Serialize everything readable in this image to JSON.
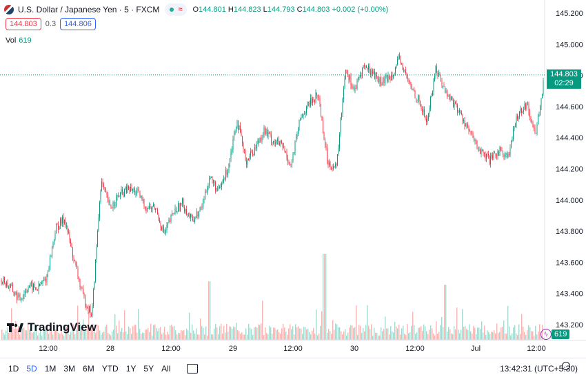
{
  "header": {
    "symbol_title": "U.S. Dollar / Japanese Yen · 5 · FXCM",
    "ohlc": {
      "o_label": "O",
      "o": "144.801",
      "h_label": "H",
      "h": "144.823",
      "l_label": "L",
      "l": "144.793",
      "c_label": "C",
      "c": "144.803",
      "change": "+0.002 (+0.00%)"
    },
    "sell_price": "144.803",
    "spread": "0.3",
    "buy_price": "144.806",
    "volume_label": "Vol",
    "volume_value": "619",
    "brand": "TradingView",
    "icons": [
      "flag-icon",
      "market-open-dot-icon",
      "wave-icon"
    ]
  },
  "last_price_label": {
    "price": "144.803",
    "countdown": "02:29"
  },
  "volume_badge": "619",
  "bottom": {
    "ranges": [
      "1D",
      "5D",
      "1M",
      "3M",
      "6M",
      "YTD",
      "1Y",
      "5Y",
      "All"
    ],
    "active_range": "5D",
    "clock": "13:42:31 (UTC+5:30)"
  },
  "colors": {
    "up": "#089981",
    "down": "#f23645",
    "vol_up": "#a6d8cf",
    "vol_down": "#f7b5b3",
    "accent": "#2962ff"
  },
  "chart_data": {
    "type": "line",
    "title": "U.S. Dollar / Japanese Yen · 5 · FXCM",
    "xlabel": "",
    "ylabel": "",
    "ylim": [
      143.1,
      145.2
    ],
    "y_ticks": [
      "145.200",
      "145.000",
      "144.800",
      "144.600",
      "144.400",
      "144.200",
      "144.000",
      "143.800",
      "143.600",
      "143.400",
      "143.200"
    ],
    "x_ticks": [
      "12:00",
      "28",
      "12:00",
      "29",
      "12:00",
      "30",
      "12:00",
      "Jul",
      "12:00"
    ],
    "last_price": 144.803,
    "series": [
      {
        "x": [
          0,
          3,
          6,
          9,
          12,
          15,
          18,
          21,
          24,
          27,
          30,
          33,
          36,
          39,
          42,
          45,
          48,
          51,
          54,
          57,
          60,
          63,
          66,
          69,
          72,
          75,
          78,
          81,
          84,
          87,
          90,
          93,
          96,
          99,
          102,
          105,
          108,
          111,
          114,
          117,
          120,
          123,
          126,
          129,
          132,
          135,
          138,
          141,
          144,
          147,
          150,
          153,
          156,
          159
        ],
        "values": [
          143.49,
          143.44,
          143.36,
          143.45,
          143.43,
          143.5,
          143.82,
          143.88,
          143.62,
          143.38,
          143.26,
          144.12,
          143.95,
          144.03,
          144.07,
          144.05,
          143.95,
          143.95,
          143.78,
          143.92,
          143.98,
          143.87,
          143.93,
          144.15,
          144.05,
          144.2,
          144.52,
          144.25,
          144.33,
          144.45,
          144.38,
          144.35,
          144.22,
          144.52,
          144.62,
          144.68,
          144.25,
          144.2,
          144.85,
          144.7,
          144.86,
          144.82,
          144.75,
          144.8,
          144.9,
          144.75,
          144.65,
          144.5,
          144.85,
          144.7,
          144.62,
          144.52,
          144.4,
          144.3
        ],
        "note": "primary-path"
      },
      {
        "x": [
          159,
          162,
          165,
          168,
          171,
          174,
          177,
          180
        ],
        "values": [
          144.3,
          144.25,
          144.32,
          144.28,
          144.55,
          144.62,
          144.42,
          144.8
        ],
        "note": "tail"
      }
    ],
    "grid": false,
    "legend": "none"
  }
}
